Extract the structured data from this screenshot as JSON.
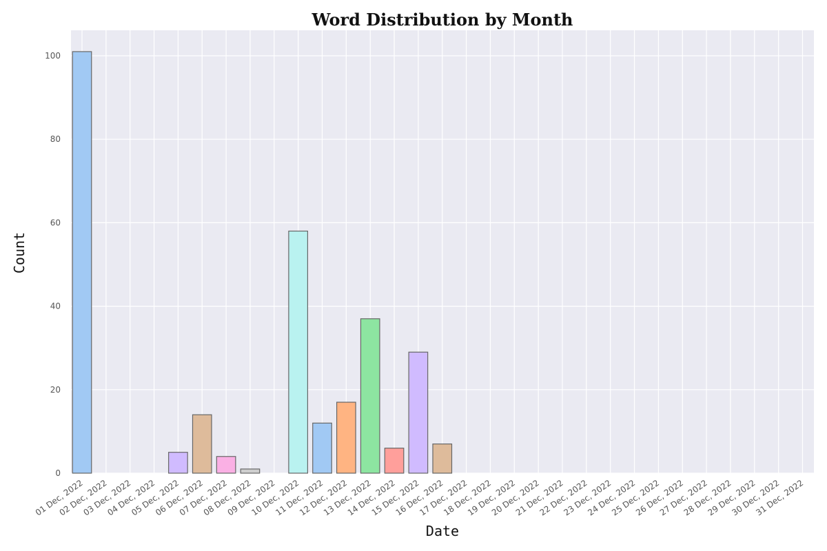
{
  "chart_data": {
    "type": "bar",
    "title": "Word Distribution by Month",
    "xlabel": "Date",
    "ylabel": "Count",
    "categories": [
      "01 Dec, 2022",
      "02 Dec, 2022",
      "03 Dec, 2022",
      "04 Dec, 2022",
      "05 Dec, 2022",
      "06 Dec, 2022",
      "07 Dec, 2022",
      "08 Dec, 2022",
      "09 Dec, 2022",
      "10 Dec, 2022",
      "11 Dec, 2022",
      "12 Dec, 2022",
      "13 Dec, 2022",
      "14 Dec, 2022",
      "15 Dec, 2022",
      "16 Dec, 2022",
      "17 Dec, 2022",
      "18 Dec, 2022",
      "19 Dec, 2022",
      "20 Dec, 2022",
      "21 Dec, 2022",
      "22 Dec, 2022",
      "23 Dec, 2022",
      "24 Dec, 2022",
      "25 Dec, 2022",
      "26 Dec, 2022",
      "27 Dec, 2022",
      "28 Dec, 2022",
      "29 Dec, 2022",
      "30 Dec, 2022",
      "31 Dec, 2022"
    ],
    "values": [
      101,
      0,
      0,
      0,
      5,
      14,
      4,
      1,
      0,
      58,
      12,
      17,
      37,
      6,
      29,
      7,
      0,
      0,
      0,
      0,
      0,
      0,
      0,
      0,
      0,
      0,
      0,
      0,
      0,
      0,
      0
    ],
    "yticks": [
      0,
      20,
      40,
      60,
      80,
      100
    ],
    "ylim": [
      0,
      106
    ],
    "grid": true,
    "colors": [
      "#a1c9f4",
      "#ffb482",
      "#8de5a1",
      "#ff9f9b",
      "#d0bbff",
      "#debb9b",
      "#fab0e4",
      "#cfcfcf",
      "#fffea3",
      "#b9f2f0",
      "#a1c9f4",
      "#ffb482",
      "#8de5a1",
      "#ff9f9b",
      "#d0bbff",
      "#debb9b",
      "#fab0e4",
      "#cfcfcf",
      "#fffea3",
      "#b9f2f0",
      "#a1c9f4",
      "#ffb482",
      "#8de5a1",
      "#ff9f9b",
      "#d0bbff",
      "#debb9b",
      "#fab0e4",
      "#cfcfcf",
      "#fffea3",
      "#b9f2f0",
      "#a1c9f4"
    ],
    "plot_background": "#eaeaf2"
  }
}
